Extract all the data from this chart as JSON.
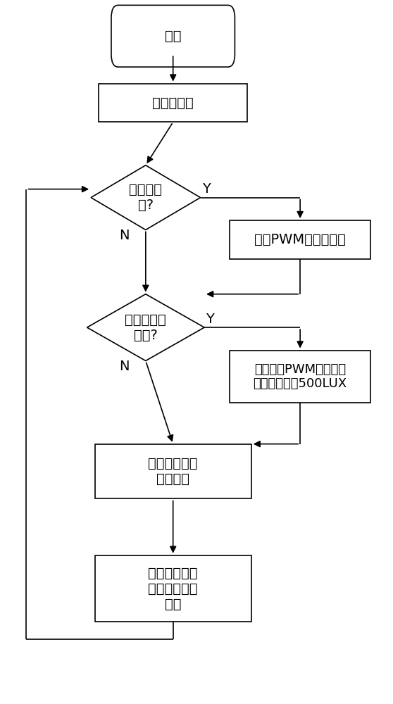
{
  "bg_color": "#ffffff",
  "line_color": "#000000",
  "box_color": "#ffffff",
  "box_edge_color": "#000000",
  "font_size": 14,
  "start_text": "开始",
  "init_text": "参数初始化",
  "d1_text": "是否在温\n室?",
  "b1_text": "红光PWM占空比为零",
  "d2_text": "是否感应到\n人体?",
  "b2_line1": "调节白光PWM占空比，",
  "b2_line2": "照度自动降到500LUX",
  "b3_text": "读取植物生长\n曲线参数",
  "b4_text": "根据生长曲线\n自动调节光照\n参数",
  "Y": "Y",
  "N": "N"
}
